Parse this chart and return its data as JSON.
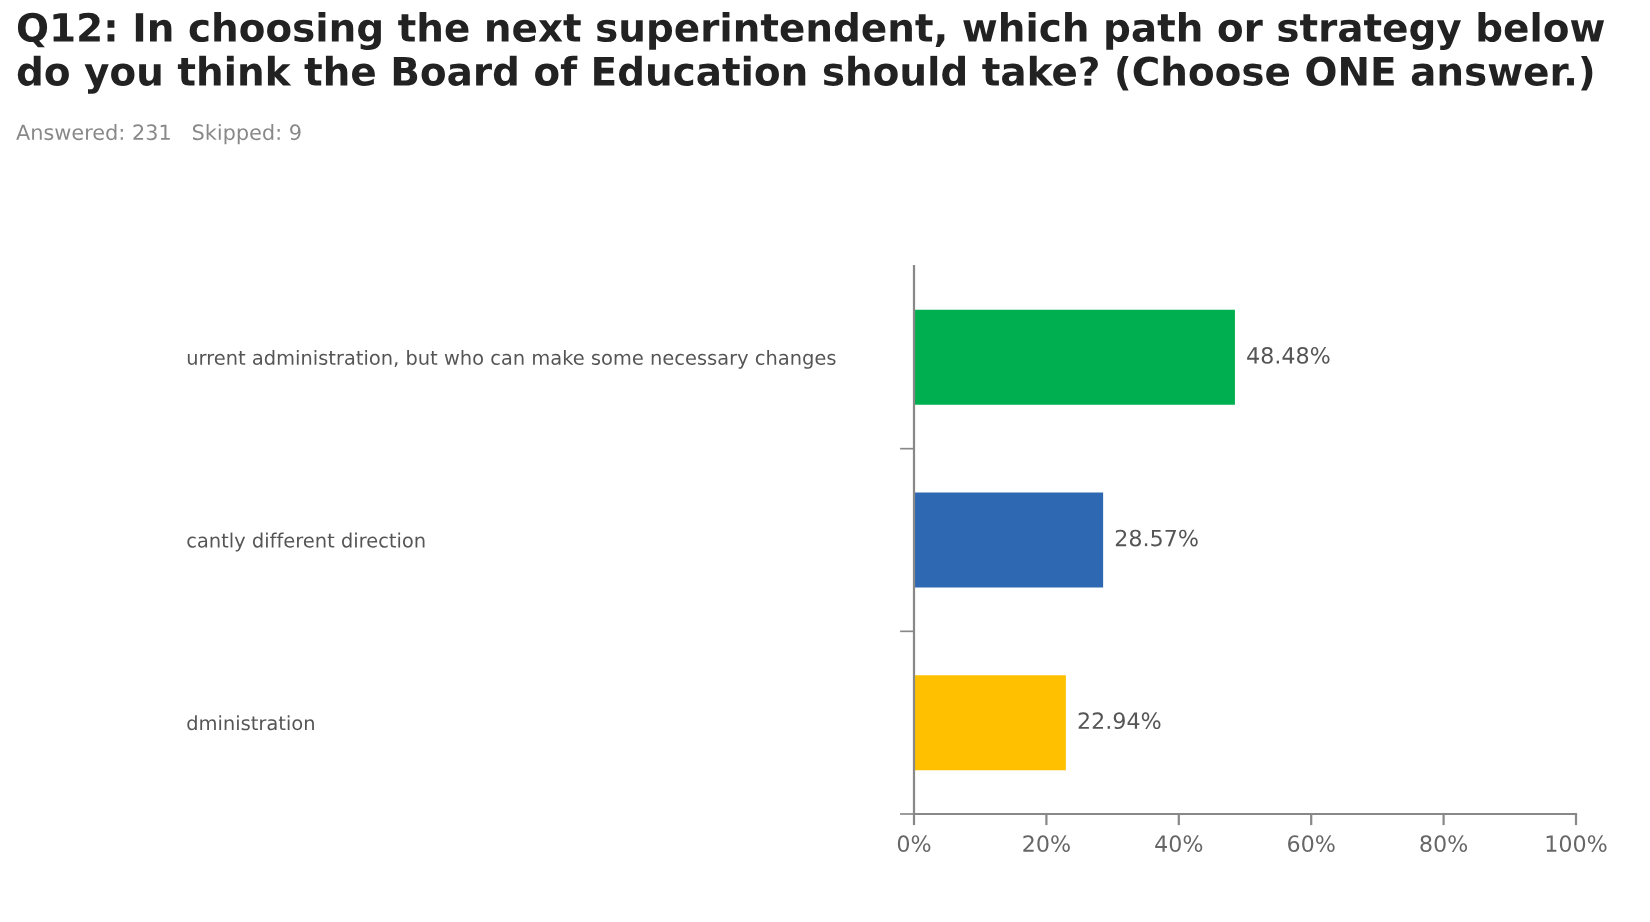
{
  "chart_data": {
    "type": "bar",
    "orientation": "horizontal",
    "title": "Q12: In choosing the next superintendent, which path or strategy below do you think the Board of Education should take? (Choose ONE answer.)",
    "subtitle": "Answered: 231   Skipped: 9",
    "categories": [
      "urrent administration, but who can make some necessary changes",
      "cantly different direction",
      "dministration"
    ],
    "values": [
      48.48,
      28.57,
      22.94
    ],
    "colors": [
      "#00b050",
      "#2e68b2",
      "#ffc000"
    ],
    "value_labels": [
      "48.48%",
      "28.57%",
      "22.94%"
    ],
    "xlim": [
      0,
      100
    ],
    "xticks": [
      {
        "value": 0,
        "label": "0%"
      },
      {
        "value": 20,
        "label": "20%"
      },
      {
        "value": 40,
        "label": "40%"
      },
      {
        "value": 60,
        "label": "60%"
      },
      {
        "value": 80,
        "label": "80%"
      },
      {
        "value": 100,
        "label": "100%"
      }
    ],
    "grid": false,
    "legend": false
  }
}
